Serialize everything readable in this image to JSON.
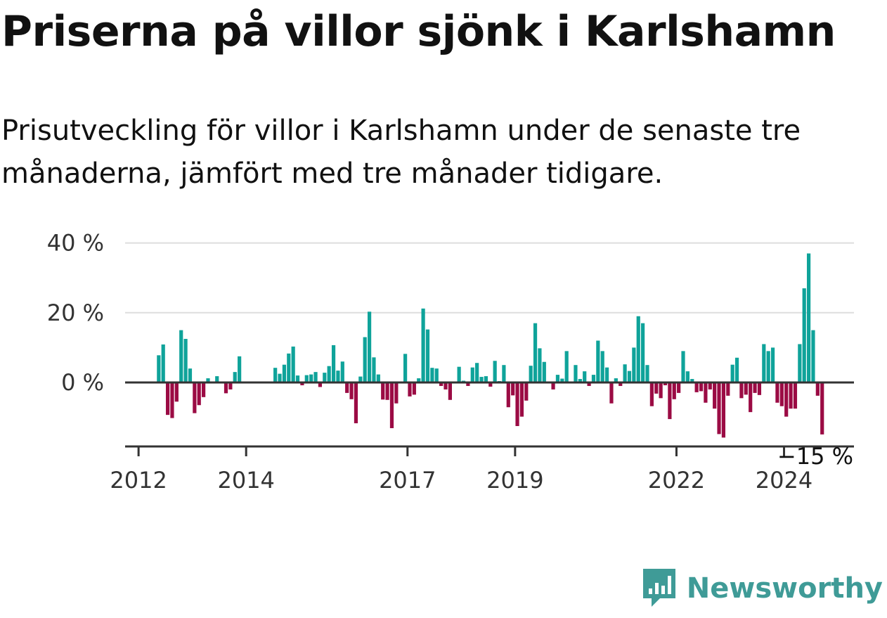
{
  "title": "Priserna på villor sjönk i Karlshamn",
  "subtitle": "Prisutveckling för villor i Karlshamn under de senaste tre månaderna, jämfört med tre månader tidigare.",
  "brand": {
    "name": "Newsworthy",
    "icon": "newsworthy-logo-icon"
  },
  "colors": {
    "positive": "#0fa39a",
    "negative": "#9b0b44",
    "grid": "#dddddd",
    "axis": "#333333",
    "brand": "#3f9b97"
  },
  "chart_data": {
    "type": "bar",
    "title": "Priserna på villor sjönk i Karlshamn",
    "xlabel": "",
    "ylabel": "",
    "ylim": [
      -18,
      40
    ],
    "yticks": [
      0,
      20,
      40
    ],
    "ytick_labels": [
      "0 %",
      "20 %",
      "40 %"
    ],
    "xticks": [
      2012,
      2014,
      2017,
      2019,
      2022,
      2024
    ],
    "xtick_labels": [
      "2012",
      "2014",
      "2017",
      "2019",
      "2022",
      "2024"
    ],
    "xlim": [
      2011.75,
      2025.3
    ],
    "grid": true,
    "last_value_label": "−15 %",
    "start": "2012-05",
    "x_unit": "month",
    "values": [
      7.8,
      10.9,
      -9.3,
      -10.2,
      -5.5,
      15,
      12.5,
      4,
      -8.8,
      -6.5,
      -4.2,
      1.2,
      0,
      1.8,
      0,
      -3.1,
      -2,
      3,
      7.5,
      0,
      0,
      0,
      0,
      0,
      0,
      0,
      4.2,
      2.5,
      5.1,
      8.3,
      10.3,
      2,
      -0.8,
      2.1,
      2.3,
      3,
      -1.3,
      2.8,
      4.7,
      10.7,
      3.4,
      6,
      -3,
      -4.8,
      -11.7,
      1.7,
      13,
      20.3,
      7.2,
      2.3,
      -4.9,
      -5,
      -13.1,
      -6,
      0,
      8.2,
      -4,
      -3.5,
      1.2,
      21.2,
      15.2,
      4.2,
      4,
      -1,
      -2,
      -5,
      0,
      4.5,
      0.5,
      -1,
      4.3,
      5.6,
      1.6,
      1.8,
      -1.2,
      6.2,
      0.4,
      5,
      -7.1,
      -3.7,
      -12.5,
      -9.8,
      -5.2,
      4.8,
      17,
      9.8,
      5.9,
      0,
      -2,
      2.2,
      1.1,
      9,
      0,
      5,
      1,
      3.2,
      -1,
      2.2,
      12,
      9,
      4.3,
      -6,
      1.2,
      -1,
      5.2,
      3.3,
      10,
      19,
      17,
      5,
      -6.8,
      -3.2,
      -4.5,
      -0.8,
      -10.5,
      -4.8,
      -3,
      9,
      3.2,
      1,
      -2.8,
      -2.5,
      -5.8,
      -2,
      -7.5,
      -14.8,
      -15.8,
      -3.8,
      5.1,
      7.1,
      -4.5,
      -3.5,
      -8.5,
      -3,
      -3.6,
      11,
      9,
      10,
      -5.8,
      -6.8,
      -9.8,
      -7.5,
      -7.5,
      11,
      27,
      37,
      15,
      -3.8,
      -14.9
    ]
  }
}
